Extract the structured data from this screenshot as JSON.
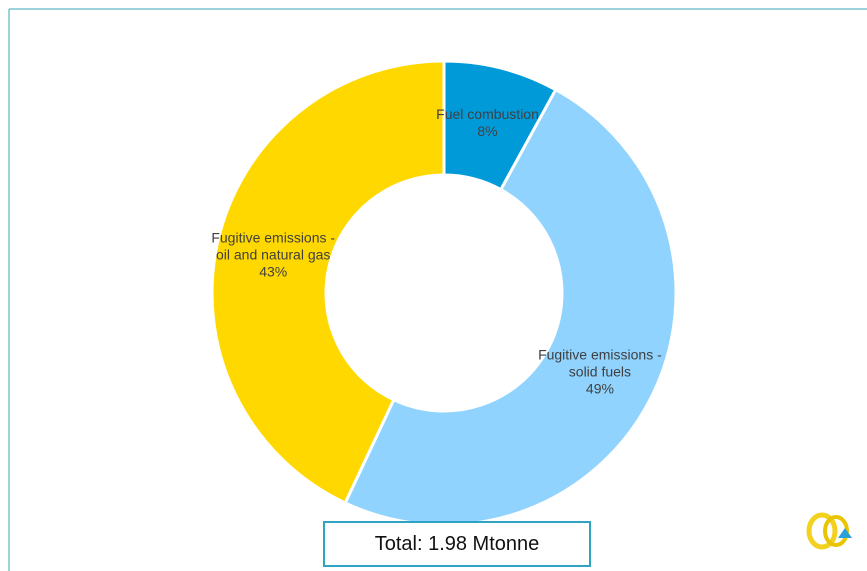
{
  "chart_data": {
    "type": "donut",
    "categories": [
      "Fuel combustion",
      "Fugitive emissions - solid fuels",
      "Fugitive emissions - oil and natural gas"
    ],
    "values": [
      8,
      49,
      43
    ],
    "value_labels": [
      "8%",
      "49%",
      "43%"
    ],
    "colors": [
      "#009ad9",
      "#8fd3fe",
      "#ffd800"
    ],
    "annotation": "Total: 1.98 Mtonne"
  }
}
